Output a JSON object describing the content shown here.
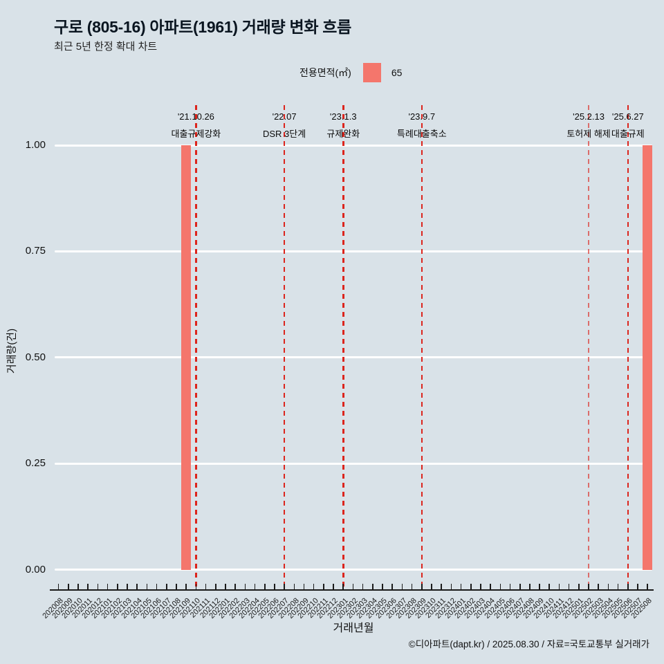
{
  "header": {
    "title": "구로 (805-16) 아파트(1961) 거래량 변화 흐름",
    "subtitle": "최근 5년 한정 확대 차트"
  },
  "legend": {
    "label": "전용면적(㎡)",
    "series_name": "65",
    "swatch_color": "#f4766c"
  },
  "footer": {
    "credit": "©디아파트(dapt.kr) / 2025.08.30 / 자료=국토교통부 실거래가"
  },
  "colors": {
    "background": "#d9e2e8",
    "bar": "#f4766c",
    "event_line": "#dc241c",
    "grid": "#ffffff",
    "axis": "#1a1a1a"
  },
  "chart_data": {
    "type": "bar",
    "title": "구로 (805-16) 아파트(1961) 거래량 변화 흐름",
    "subtitle": "최근 5년 한정 확대 차트",
    "xlabel": "거래년월",
    "ylabel": "거래량(건)",
    "ylim": [
      0,
      1
    ],
    "yticks": [
      "1.00",
      "0.75",
      "0.50",
      "0.25",
      "0.00"
    ],
    "grid": "horizontal",
    "legend_position": "top",
    "categories": [
      "202008",
      "202009",
      "202010",
      "202011",
      "202012",
      "202101",
      "202102",
      "202103",
      "202104",
      "202105",
      "202106",
      "202107",
      "202108",
      "202109",
      "202110",
      "202111",
      "202112",
      "202201",
      "202202",
      "202203",
      "202204",
      "202205",
      "202206",
      "202207",
      "202208",
      "202209",
      "202210",
      "202211",
      "202212",
      "202301",
      "202302",
      "202303",
      "202304",
      "202305",
      "202306",
      "202307",
      "202308",
      "202309",
      "202310",
      "202311",
      "202312",
      "202401",
      "202402",
      "202403",
      "202404",
      "202405",
      "202406",
      "202407",
      "202408",
      "202409",
      "202410",
      "202411",
      "202412",
      "202501",
      "202502",
      "202503",
      "202504",
      "202505",
      "202506",
      "202507",
      "202508"
    ],
    "series": [
      {
        "name": "65",
        "color": "#f4766c",
        "values": [
          0,
          0,
          0,
          0,
          0,
          0,
          0,
          0,
          0,
          0,
          0,
          0,
          0,
          1,
          0,
          0,
          0,
          0,
          0,
          0,
          0,
          0,
          0,
          0,
          0,
          0,
          0,
          0,
          0,
          0,
          0,
          0,
          0,
          0,
          0,
          0,
          0,
          0,
          0,
          0,
          0,
          0,
          0,
          0,
          0,
          0,
          0,
          0,
          0,
          0,
          0,
          0,
          0,
          0,
          0,
          0,
          0,
          0,
          0,
          0,
          1
        ]
      }
    ],
    "annotations": [
      {
        "date": "'21.10.26",
        "label": "대출규제강화",
        "month": "202110",
        "faded": false
      },
      {
        "date": "'22.07",
        "label": "DSR 3단계",
        "month": "202207",
        "faded": false
      },
      {
        "date": "'23.1.3",
        "label": "규제완화",
        "month": "202301",
        "faded": false
      },
      {
        "date": "'23.9.7",
        "label": "특례대출축소",
        "month": "202309",
        "faded": false
      },
      {
        "date": "'25.2.13",
        "label": "토허제 해제",
        "month": "202502",
        "faded": true
      },
      {
        "date": "'25.6.27",
        "label": "대출규제",
        "month": "202506",
        "faded": false
      }
    ]
  }
}
